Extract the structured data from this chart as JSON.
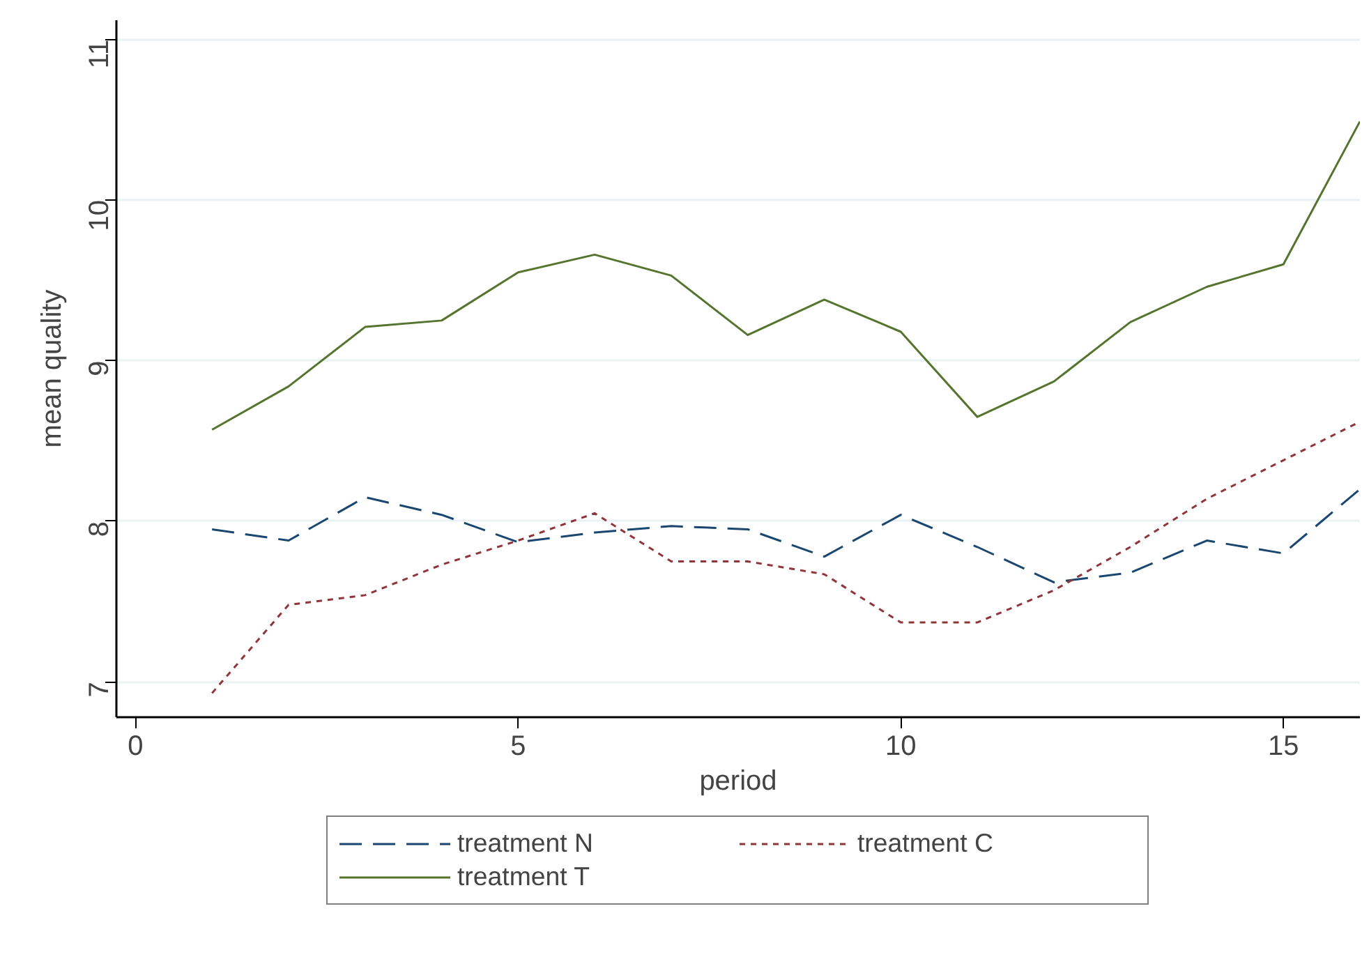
{
  "chart_data": {
    "type": "line",
    "xlabel": "period",
    "ylabel": "mean quality",
    "x": [
      1,
      2,
      3,
      4,
      5,
      6,
      7,
      8,
      9,
      10,
      11,
      12,
      13,
      14,
      15,
      16
    ],
    "series": [
      {
        "name": "treatment N",
        "color": "#1a476f",
        "line_style": "dashed",
        "values": [
          7.95,
          7.88,
          8.15,
          8.04,
          7.87,
          7.93,
          7.97,
          7.95,
          7.78,
          8.04,
          7.84,
          7.62,
          7.68,
          7.88,
          7.8,
          8.2
        ]
      },
      {
        "name": "treatment C",
        "color": "#90353b",
        "line_style": "dotted",
        "values": [
          6.93,
          7.48,
          7.54,
          7.73,
          7.88,
          8.05,
          7.75,
          7.75,
          7.67,
          7.37,
          7.37,
          7.57,
          7.84,
          8.14,
          8.38,
          8.62
        ]
      },
      {
        "name": "treatment T",
        "color": "#55752f",
        "line_style": "solid",
        "values": [
          8.57,
          8.84,
          9.21,
          9.25,
          9.55,
          9.66,
          9.53,
          9.16,
          9.38,
          9.18,
          8.65,
          8.87,
          9.24,
          9.46,
          9.6,
          10.49
        ]
      }
    ],
    "xlim": [
      -0.25,
      16
    ],
    "ylim": [
      6.78,
      11.12
    ],
    "xticks": [
      0,
      5,
      10,
      15
    ],
    "yticks": [
      7,
      8,
      9,
      10,
      11
    ],
    "grid": "y",
    "legend": "bottom"
  }
}
